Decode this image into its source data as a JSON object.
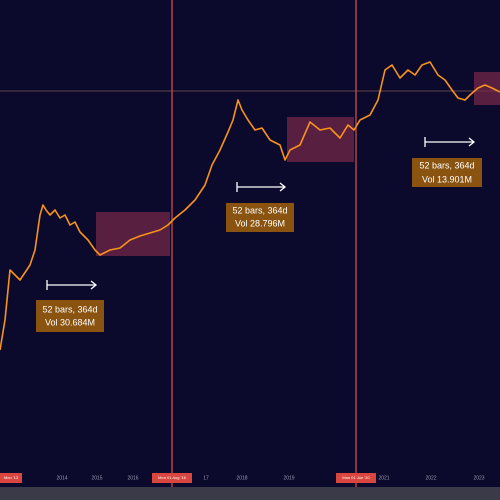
{
  "measurements": [
    {
      "range": "52 bars, 364d",
      "volume": "Vol 30.684M"
    },
    {
      "range": "52 bars, 364d",
      "volume": "Vol 28.796M"
    },
    {
      "range": "52 bars, 364d",
      "volume": "Vol 13.901M"
    }
  ],
  "x_axis": {
    "labels": [
      "2014",
      "2015",
      "2016",
      "17",
      "2018",
      "2019",
      "2021",
      "2022",
      "2023"
    ]
  },
  "markers": [
    "Mon '13",
    "Mon 01 Aug '16",
    "Mon 01 Jun '20"
  ]
}
